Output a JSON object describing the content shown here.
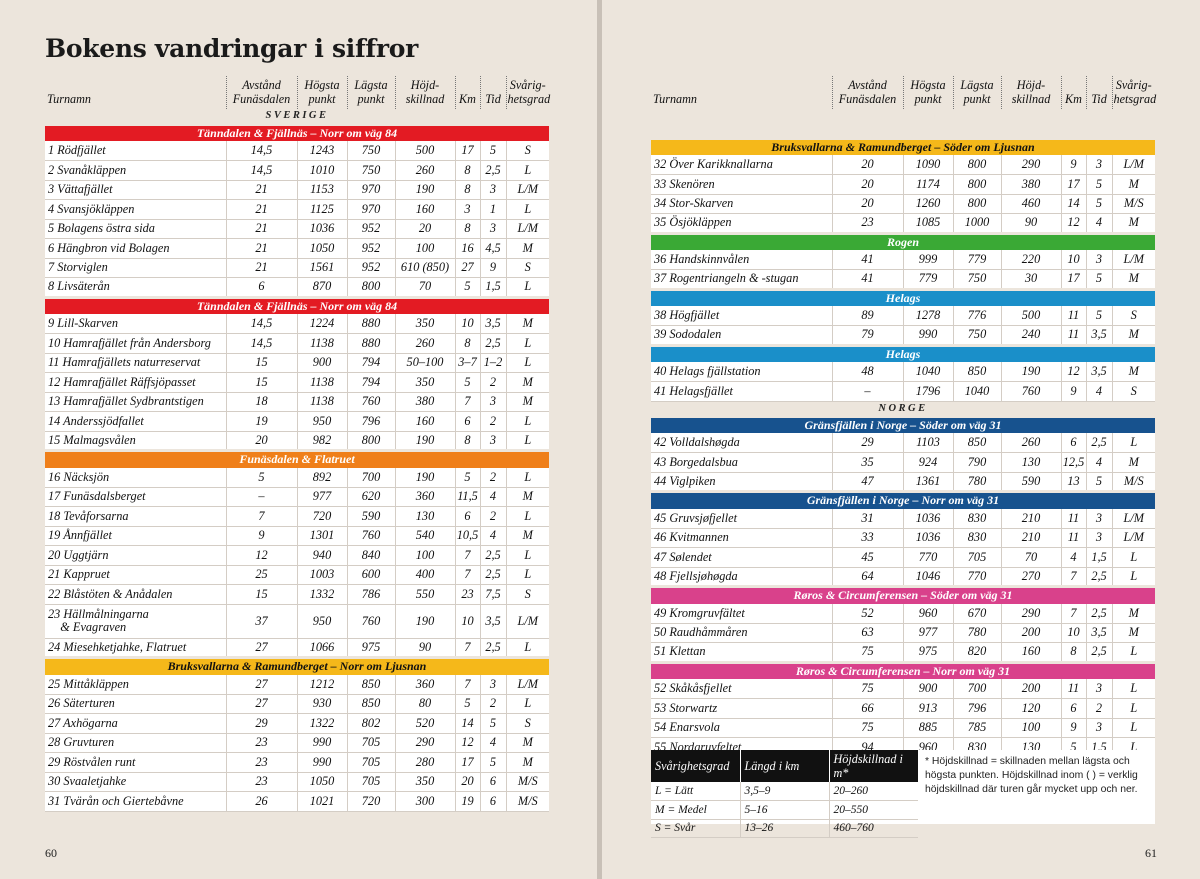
{
  "title": "Bokens vandringar i siffror",
  "page_left": "60",
  "page_right": "61",
  "headers": {
    "name": "Turnamn",
    "dist": [
      "Avstånd",
      "Funäsdalen"
    ],
    "high": [
      "Högsta",
      "punkt"
    ],
    "low": [
      "Lägsta",
      "punkt"
    ],
    "diff": [
      "Höjd-",
      "skillnad"
    ],
    "km": "Km",
    "time": "Tid",
    "grade": [
      "Svårig-",
      "hetsgrad"
    ]
  },
  "left_blocks": [
    {
      "section": "SVERIGE"
    },
    {
      "group": "Tänndalen & Fjällnäs – Norr om väg 84",
      "color": "#e31b23",
      "cls": "c-red",
      "rows": [
        [
          "1 Rödfjället",
          "14,5",
          "1243",
          "750",
          "500",
          "17",
          "5",
          "S"
        ],
        [
          "2 Svanåkläppen",
          "14,5",
          "1010",
          "750",
          "260",
          "8",
          "2,5",
          "L"
        ],
        [
          "3 Vättafjället",
          "21",
          "1153",
          "970",
          "190",
          "8",
          "3",
          "L/M"
        ],
        [
          "4 Svansjökläppen",
          "21",
          "1125",
          "970",
          "160",
          "3",
          "1",
          "L"
        ],
        [
          "5 Bolagens östra sida",
          "21",
          "1036",
          "952",
          "20",
          "8",
          "3",
          "L/M"
        ],
        [
          "6 Hängbron vid Bolagen",
          "21",
          "1050",
          "952",
          "100",
          "16",
          "4,5",
          "M"
        ],
        [
          "7 Storviglen",
          "21",
          "1561",
          "952",
          "610 (850)",
          "27",
          "9",
          "S"
        ],
        [
          "8 Livsäterån",
          "6",
          "870",
          "800",
          "70",
          "5",
          "1,5",
          "L"
        ]
      ]
    },
    {
      "group": "Tänndalen & Fjällnäs – Norr om väg 84",
      "color": "#e31b23",
      "cls": "c-red",
      "rows": [
        [
          "9 Lill-Skarven",
          "14,5",
          "1224",
          "880",
          "350",
          "10",
          "3,5",
          "M"
        ],
        [
          "10 Hamrafjället från Andersborg",
          "14,5",
          "1138",
          "880",
          "260",
          "8",
          "2,5",
          "L"
        ],
        [
          "11 Hamrafjällets naturreservat",
          "15",
          "900",
          "794",
          "50–100",
          "3–7",
          "1–2",
          "L"
        ],
        [
          "12 Hamrafjället Räffsjöpasset",
          "15",
          "1138",
          "794",
          "350",
          "5",
          "2",
          "M"
        ],
        [
          "13 Hamrafjället Sydbrantstigen",
          "18",
          "1138",
          "760",
          "380",
          "7",
          "3",
          "M"
        ],
        [
          "14 Anderssjödfallet",
          "19",
          "950",
          "796",
          "160",
          "6",
          "2",
          "L"
        ],
        [
          "15 Malmagsvålen",
          "20",
          "982",
          "800",
          "190",
          "8",
          "3",
          "L"
        ]
      ]
    },
    {
      "group": "Funäsdalen & Flatruet",
      "color": "#ef7f1a",
      "cls": "c-orange",
      "rows": [
        [
          "16 Näcksjön",
          "5",
          "892",
          "700",
          "190",
          "5",
          "2",
          "L"
        ],
        [
          "17 Funäsdalsberget",
          "–",
          "977",
          "620",
          "360",
          "11,5",
          "4",
          "M"
        ],
        [
          "18 Tevåforsarna",
          "7",
          "720",
          "590",
          "130",
          "6",
          "2",
          "L"
        ],
        [
          "19 Ånnfjället",
          "9",
          "1301",
          "760",
          "540",
          "10,5",
          "4",
          "M"
        ],
        [
          "20 Uggtjärn",
          "12",
          "940",
          "840",
          "100",
          "7",
          "2,5",
          "L"
        ],
        [
          "21 Kappruet",
          "25",
          "1003",
          "600",
          "400",
          "7",
          "2,5",
          "L"
        ],
        [
          "22 Blåstöten & Anådalen",
          "15",
          "1332",
          "786",
          "550",
          "23",
          "7,5",
          "S"
        ],
        [
          "23 Hällmålningarna\n    & Evagraven",
          "37",
          "950",
          "760",
          "190",
          "10",
          "3,5",
          "L/M"
        ],
        [
          "24 Miesehketjahke, Flatruet",
          "27",
          "1066",
          "975",
          "90",
          "7",
          "2,5",
          "L"
        ]
      ]
    },
    {
      "group": "Bruksvallarna & Ramundberget – Norr om Ljusnan",
      "color": "#f5b81a",
      "cls": "c-yellow",
      "rows": [
        [
          "25 Mittåkläppen",
          "27",
          "1212",
          "850",
          "360",
          "7",
          "3",
          "L/M"
        ],
        [
          "26 Säterturen",
          "27",
          "930",
          "850",
          "80",
          "5",
          "2",
          "L"
        ],
        [
          "27 Axhögarna",
          "29",
          "1322",
          "802",
          "520",
          "14",
          "5",
          "S"
        ],
        [
          "28 Gruvturen",
          "23",
          "990",
          "705",
          "290",
          "12",
          "4",
          "M"
        ],
        [
          "29 Röstvålen runt",
          "23",
          "990",
          "705",
          "280",
          "17",
          "5",
          "M"
        ],
        [
          "30 Svaaletjahke",
          "23",
          "1050",
          "705",
          "350",
          "20",
          "6",
          "M/S"
        ],
        [
          "31 Tvärån och Giertebåvne",
          "26",
          "1021",
          "720",
          "300",
          "19",
          "6",
          "M/S"
        ]
      ]
    }
  ],
  "right_blocks": [
    {
      "spacer": true
    },
    {
      "group": "Bruksvallarna & Ramundberget – Söder om Ljusnan",
      "color": "#f5b81a",
      "cls": "c-yellow",
      "rows": [
        [
          "32 Över Karikknallarna",
          "20",
          "1090",
          "800",
          "290",
          "9",
          "3",
          "L/M"
        ],
        [
          "33 Skenören",
          "20",
          "1174",
          "800",
          "380",
          "17",
          "5",
          "M"
        ],
        [
          "34 Stor-Skarven",
          "20",
          "1260",
          "800",
          "460",
          "14",
          "5",
          "M/S"
        ],
        [
          "35 Ösjökläppen",
          "23",
          "1085",
          "1000",
          "90",
          "12",
          "4",
          "M"
        ]
      ]
    },
    {
      "group": "Rogen",
      "color": "#3aa935",
      "cls": "c-green",
      "rows": [
        [
          "36 Handskinnvålen",
          "41",
          "999",
          "779",
          "220",
          "10",
          "3",
          "L/M"
        ],
        [
          "37 Rogentriangeln & -stugan",
          "41",
          "779",
          "750",
          "30",
          "17",
          "5",
          "M"
        ]
      ]
    },
    {
      "group": "Helags",
      "color": "#1a8fc9",
      "cls": "c-cyan",
      "rows": [
        [
          "38 Högfjället",
          "89",
          "1278",
          "776",
          "500",
          "11",
          "5",
          "S"
        ],
        [
          "39 Sododalen",
          "79",
          "990",
          "750",
          "240",
          "11",
          "3,5",
          "M"
        ]
      ]
    },
    {
      "group": "Helags",
      "color": "#1a8fc9",
      "cls": "c-cyan",
      "rows": [
        [
          "40 Helags fjällstation",
          "48",
          "1040",
          "850",
          "190",
          "12",
          "3,5",
          "M"
        ],
        [
          "41 Helagsfjället",
          "–",
          "1796",
          "1040",
          "760",
          "9",
          "4",
          "S"
        ]
      ]
    },
    {
      "section": "NORGE"
    },
    {
      "group": "Gränsfjällen i Norge – Söder om väg 31",
      "color": "#17528e",
      "cls": "c-navy",
      "rows": [
        [
          "42 Volldalshøgda",
          "29",
          "1103",
          "850",
          "260",
          "6",
          "2,5",
          "L"
        ],
        [
          "43 Borgedalsbua",
          "35",
          "924",
          "790",
          "130",
          "12,5",
          "4",
          "M"
        ],
        [
          "44 Viglpiken",
          "47",
          "1361",
          "780",
          "590",
          "13",
          "5",
          "M/S"
        ]
      ]
    },
    {
      "group": "Gränsfjällen i Norge – Norr om väg 31",
      "color": "#17528e",
      "cls": "c-navy",
      "rows": [
        [
          "45 Gruvsjøfjellet",
          "31",
          "1036",
          "830",
          "210",
          "11",
          "3",
          "L/M"
        ],
        [
          "46 Kvitmannen",
          "33",
          "1036",
          "830",
          "210",
          "11",
          "3",
          "L/M"
        ],
        [
          "47 Sølendet",
          "45",
          "770",
          "705",
          "70",
          "4",
          "1,5",
          "L"
        ],
        [
          "48 Fjellsjøhøgda",
          "64",
          "1046",
          "770",
          "270",
          "7",
          "2,5",
          "L"
        ]
      ]
    },
    {
      "group": "Røros & Circumferensen – Söder om väg 31",
      "color": "#d9418b",
      "cls": "c-pink",
      "rows": [
        [
          "49 Kromgruvfältet",
          "52",
          "960",
          "670",
          "290",
          "7",
          "2,5",
          "M"
        ],
        [
          "50 Raudhåmmåren",
          "63",
          "977",
          "780",
          "200",
          "10",
          "3,5",
          "M"
        ],
        [
          "51 Klettan",
          "75",
          "975",
          "820",
          "160",
          "8",
          "2,5",
          "L"
        ]
      ]
    },
    {
      "group": "Røros & Circumferensen – Norr om väg 31",
      "color": "#d9418b",
      "cls": "c-pink",
      "rows": [
        [
          "52 Skåkåsfjellet",
          "75",
          "900",
          "700",
          "200",
          "11",
          "3",
          "L"
        ],
        [
          "53 Storwartz",
          "66",
          "913",
          "796",
          "120",
          "6",
          "2",
          "L"
        ],
        [
          "54 Enarsvola",
          "75",
          "885",
          "785",
          "100",
          "9",
          "3",
          "L"
        ],
        [
          "55 Nordgruvfeltet",
          "94",
          "960",
          "830",
          "130",
          "5",
          "1,5",
          "L"
        ]
      ]
    }
  ],
  "legend": {
    "headers": [
      "Svårighetsgrad",
      "Längd i km",
      "Höjdskillnad i m*"
    ],
    "rows": [
      [
        "L = Lätt",
        "3,5–9",
        "20–260"
      ],
      [
        "M = Medel",
        "5–16",
        "20–550"
      ],
      [
        "S = Svår",
        "13–26",
        "460–760"
      ]
    ],
    "note": "* Höjdskillnad = skillnaden mellan lägsta och högsta punkten. Höjdskillnad inom ( ) = verklig höjdskillnad där turen går mycket upp och ner."
  }
}
